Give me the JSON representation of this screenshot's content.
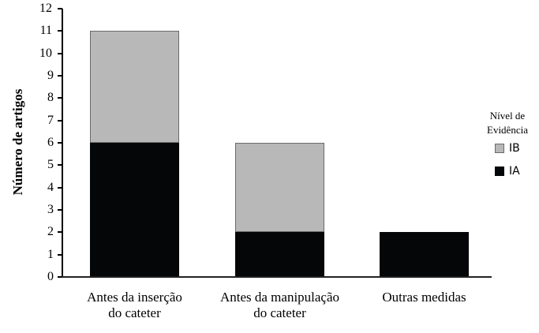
{
  "chart_data": {
    "type": "bar",
    "stacked": true,
    "title": "",
    "xlabel": "",
    "ylabel": "Número de artigos",
    "ylim": [
      0,
      12
    ],
    "yticks": [
      0,
      1,
      2,
      3,
      4,
      5,
      6,
      7,
      8,
      9,
      10,
      11,
      12
    ],
    "categories": [
      "Antes da inserção do cateter",
      "Antes da manipulação do cateter",
      "Outras medidas"
    ],
    "category_lines": [
      [
        "Antes da inserção",
        "do cateter"
      ],
      [
        "Antes da manipulação",
        "do cateter"
      ],
      [
        "Outras medidas",
        ""
      ]
    ],
    "series": [
      {
        "name": "IA",
        "color": "#050608",
        "values": [
          6,
          2,
          2
        ]
      },
      {
        "name": "IB",
        "color": "#b8b8b8",
        "values": [
          5,
          4,
          0
        ]
      }
    ],
    "legend": {
      "title_lines": [
        "Nível de",
        "Evidência"
      ],
      "position": "right",
      "entries": [
        "IB",
        "IA"
      ]
    },
    "grid": false
  }
}
